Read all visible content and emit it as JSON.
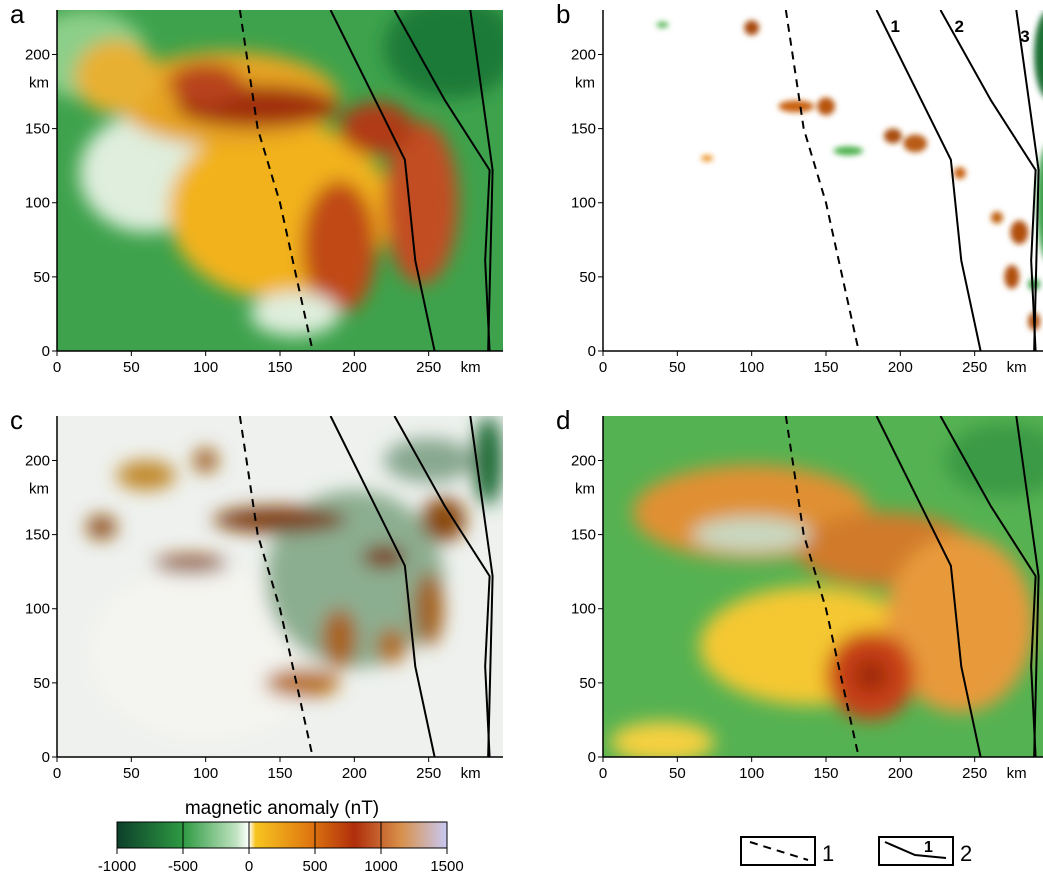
{
  "chart_data": [
    {
      "type": "map",
      "label": "a",
      "xlim": [
        0,
        300
      ],
      "ylim": [
        0,
        230
      ],
      "xticks": [
        0,
        50,
        100,
        150,
        200,
        250
      ],
      "yticks": [
        0,
        50,
        100,
        150,
        200
      ],
      "x_unit": "km",
      "y_unit": "km"
    },
    {
      "type": "map",
      "label": "b",
      "xlim": [
        0,
        300
      ],
      "ylim": [
        0,
        230
      ],
      "xticks": [
        0,
        50,
        100,
        150,
        200,
        250
      ],
      "yticks": [
        0,
        50,
        100,
        150,
        200
      ],
      "x_unit": "km",
      "y_unit": "km",
      "line_labels": [
        "1",
        "2",
        "3"
      ]
    },
    {
      "type": "map",
      "label": "c",
      "xlim": [
        0,
        300
      ],
      "ylim": [
        0,
        230
      ],
      "xticks": [
        0,
        50,
        100,
        150,
        200,
        250
      ],
      "yticks": [
        0,
        50,
        100,
        150,
        200
      ],
      "x_unit": "km",
      "y_unit": "km"
    },
    {
      "type": "map",
      "label": "d",
      "xlim": [
        0,
        300
      ],
      "ylim": [
        0,
        230
      ],
      "xticks": [
        0,
        50,
        100,
        150,
        200,
        250
      ],
      "yticks": [
        0,
        50,
        100,
        150,
        200
      ],
      "x_unit": "km",
      "y_unit": "km"
    }
  ],
  "colorbar": {
    "title": "magnetic anomaly (nT)",
    "lim": [
      -1000,
      1500
    ],
    "ticks": [
      -1000,
      -500,
      0,
      500,
      1000,
      1500
    ]
  },
  "legend": [
    {
      "label": "1"
    },
    {
      "label": "2",
      "symbol_text": "1"
    }
  ]
}
